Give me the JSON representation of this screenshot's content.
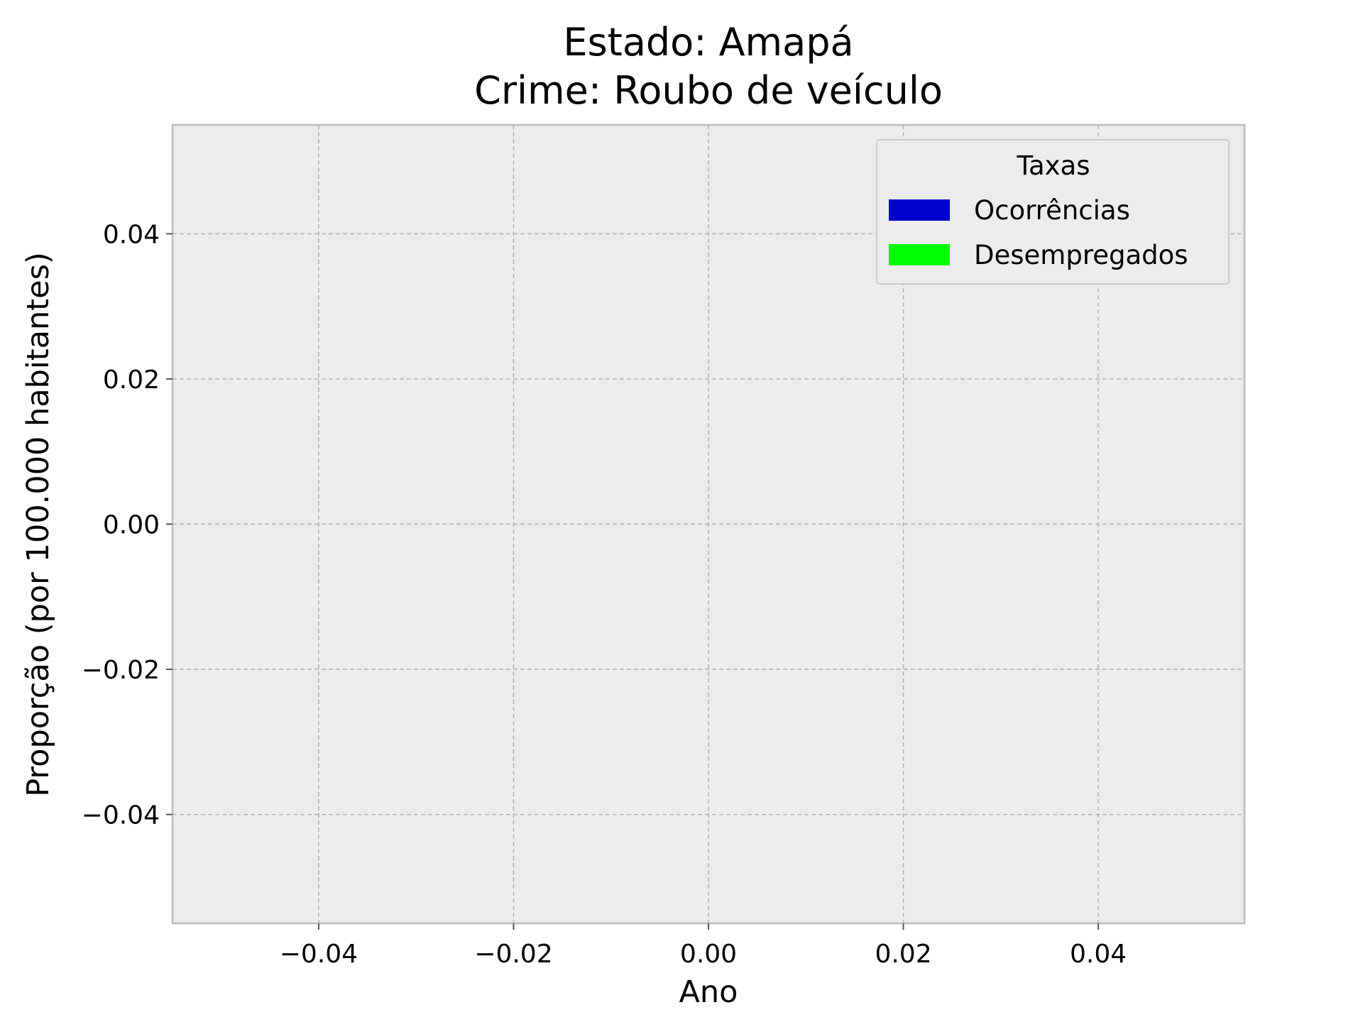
{
  "chart_data": {
    "type": "line",
    "title_lines": [
      "Estado: Amapá",
      "Crime: Roubo de veículo"
    ],
    "xlabel": "Ano",
    "ylabel": "Proporção (por 100.000 habitantes)",
    "xlim": [
      -0.055,
      0.055
    ],
    "ylim": [
      -0.055,
      0.055
    ],
    "x_ticks": [
      -0.04,
      -0.02,
      0.0,
      0.02,
      0.04
    ],
    "x_tick_labels": [
      "−0.04",
      "−0.02",
      "0.00",
      "0.02",
      "0.04"
    ],
    "y_ticks": [
      -0.04,
      -0.02,
      0.0,
      0.02,
      0.04
    ],
    "y_tick_labels": [
      "−0.04",
      "−0.02",
      "0.00",
      "0.02",
      "0.04"
    ],
    "grid": true,
    "legend": {
      "title": "Taxas",
      "placement": "top-right",
      "entries": [
        {
          "label": "Ocorrências",
          "color": "#0000cc"
        },
        {
          "label": "Desempregados",
          "color": "#00ff00"
        }
      ]
    },
    "series": [
      {
        "name": "Ocorrências",
        "color": "#0000cc",
        "x": [],
        "y": []
      },
      {
        "name": "Desempregados",
        "color": "#00ff00",
        "x": [],
        "y": []
      }
    ],
    "colors": {
      "plot_background": "#ececec",
      "spine": "#bcbcbc",
      "grid": "#b0b0b0"
    }
  }
}
